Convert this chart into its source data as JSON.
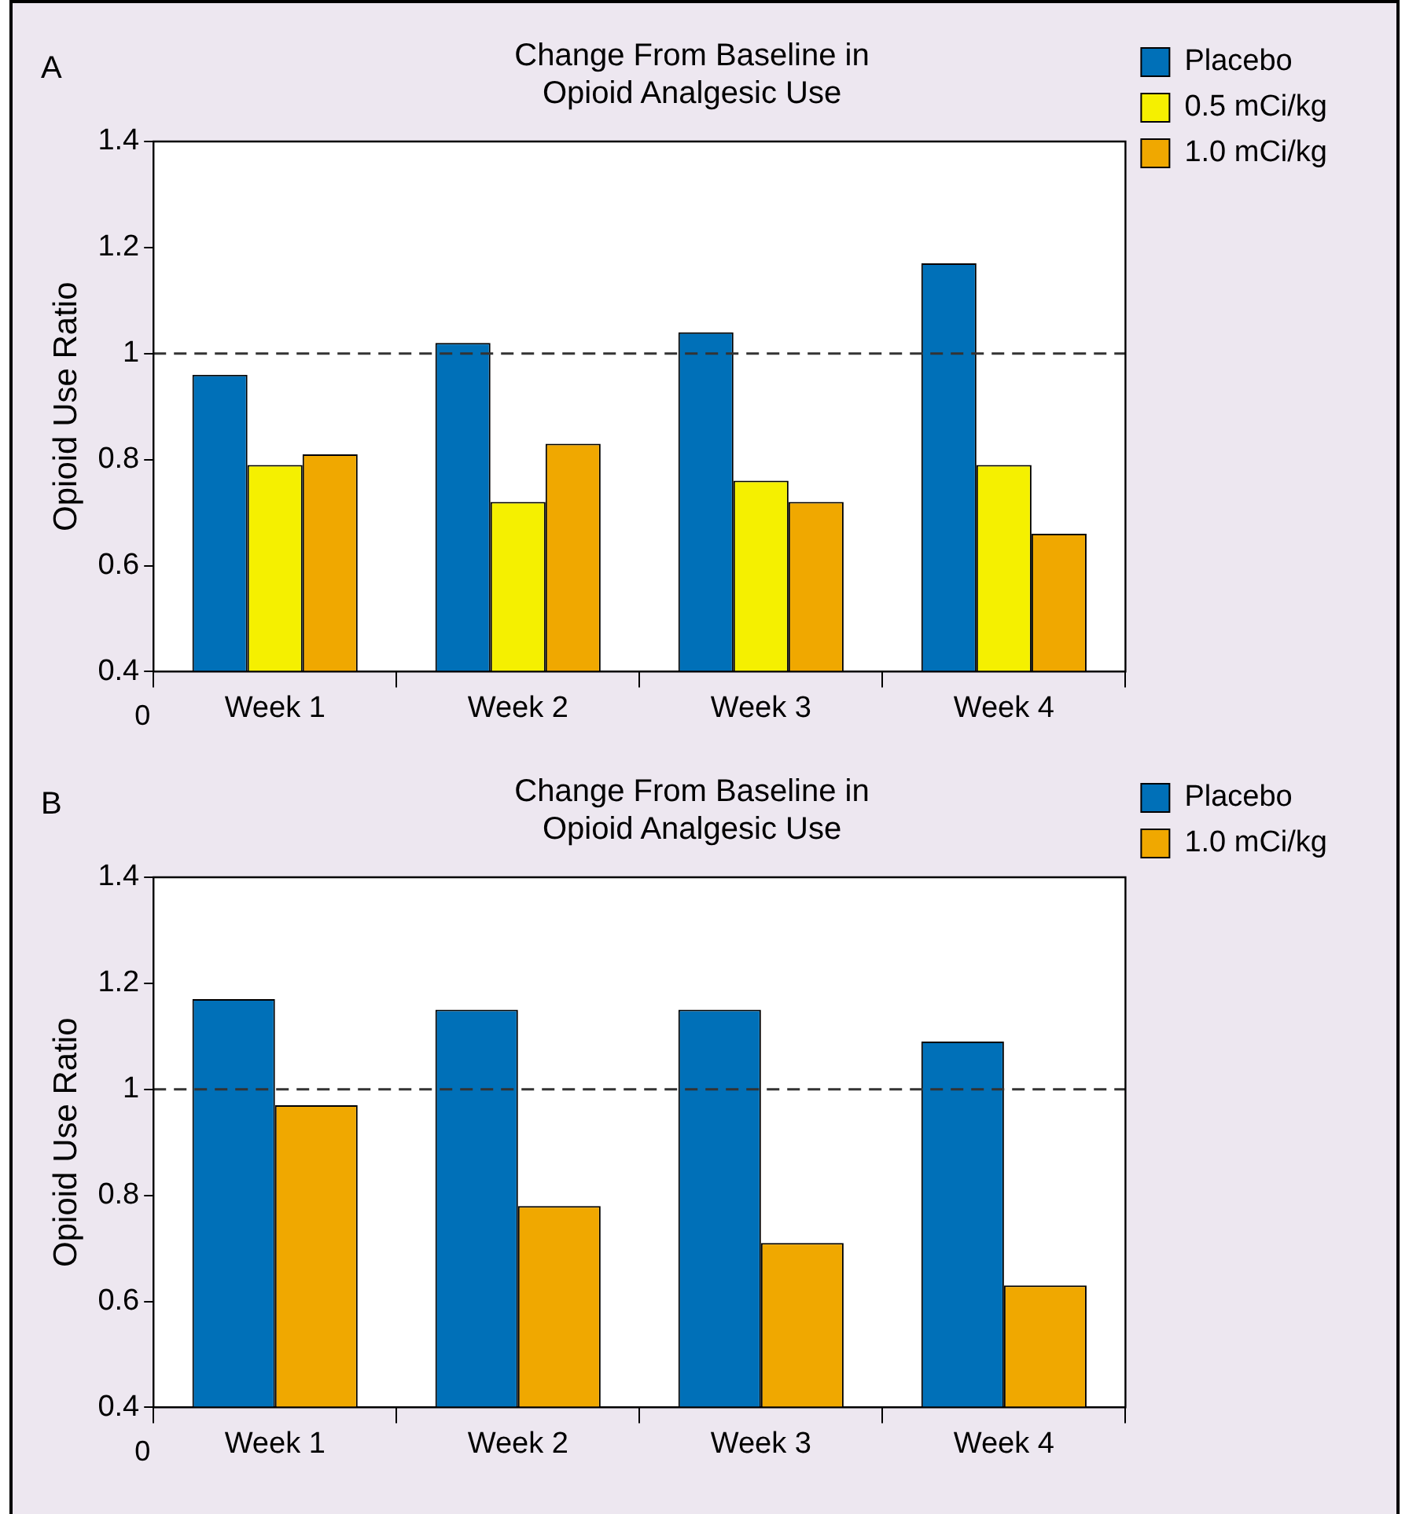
{
  "chart_data": [
    {
      "type": "bar",
      "title": "Change From Baseline in\nOpioid Analgesic Use",
      "ylabel": "Opioid Use Ratio",
      "annotations": [
        "A",
        "0"
      ],
      "categories": [
        "Week 1",
        "Week 2",
        "Week 3",
        "Week 4"
      ],
      "series": [
        {
          "name": "Placebo",
          "color": "#0070b8",
          "values": [
            0.96,
            1.02,
            1.04,
            1.17
          ]
        },
        {
          "name": "0.5 mCi/kg",
          "color": "#f5f000",
          "values": [
            0.79,
            0.72,
            0.76,
            0.79
          ]
        },
        {
          "name": "1.0 mCi/kg",
          "color": "#f0a800",
          "values": [
            0.81,
            0.83,
            0.72,
            0.66
          ]
        }
      ],
      "ylim": [
        0.4,
        1.4
      ],
      "yticks": [
        0.4,
        0.6,
        0.8,
        1,
        1.2,
        1.4
      ],
      "ref_lines": [
        {
          "axis": "y",
          "value": 1,
          "line_style": "dashed"
        }
      ],
      "legend": "right",
      "grid": false
    },
    {
      "type": "bar",
      "title": "Change From Baseline in\nOpioid Analgesic Use",
      "ylabel": "Opioid Use Ratio",
      "annotations": [
        "B",
        "0"
      ],
      "categories": [
        "Week 1",
        "Week 2",
        "Week 3",
        "Week 4"
      ],
      "series": [
        {
          "name": "Placebo",
          "color": "#0070b8",
          "values": [
            1.17,
            1.15,
            1.15,
            1.09
          ]
        },
        {
          "name": "1.0 mCi/kg",
          "color": "#f0a800",
          "values": [
            0.97,
            0.78,
            0.71,
            0.63
          ]
        }
      ],
      "ylim": [
        0.4,
        1.4
      ],
      "yticks": [
        0.4,
        0.6,
        0.8,
        1,
        1.2,
        1.4
      ],
      "ref_lines": [
        {
          "axis": "y",
          "value": 1,
          "line_style": "dashed"
        }
      ],
      "legend": "right",
      "grid": false
    }
  ]
}
